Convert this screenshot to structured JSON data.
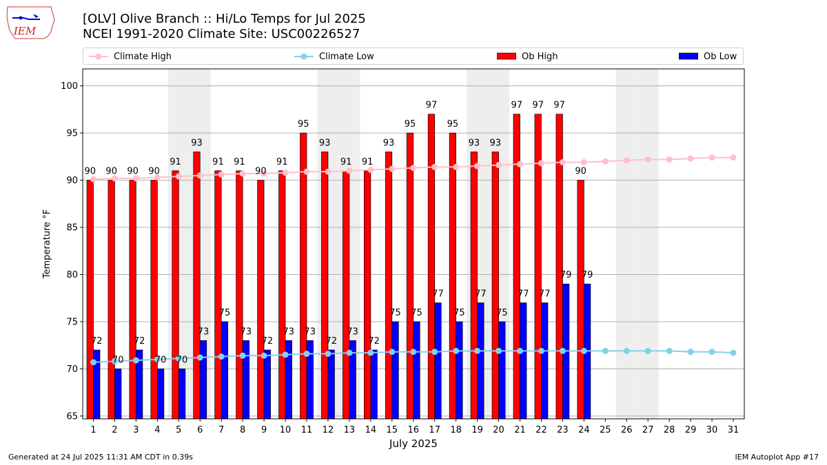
{
  "header": {
    "line1": "[OLV] Olive Branch :: Hi/Lo Temps for Jul 2025",
    "line2": "NCEI 1991-2020 Climate Site: USC00226527",
    "logo_text": "IEM"
  },
  "legend": {
    "items": [
      {
        "label": "Climate High",
        "color": "#ffc0cb",
        "kind": "line"
      },
      {
        "label": "Climate Low",
        "color": "#87ceeb",
        "kind": "line"
      },
      {
        "label": "Ob High",
        "color": "#ff0000",
        "kind": "bar"
      },
      {
        "label": "Ob Low",
        "color": "#0000ff",
        "kind": "bar"
      }
    ]
  },
  "footer": {
    "left": "Generated at 24 Jul 2025 11:31 AM CDT in 0.39s",
    "right": "IEM Autoplot App #17"
  },
  "chart_data": {
    "type": "bar",
    "xlabel": "July 2025",
    "ylabel": "Temperature °F",
    "ylim": [
      64.7,
      101.8
    ],
    "yticks": [
      65,
      70,
      75,
      80,
      85,
      90,
      95,
      100
    ],
    "days": [
      1,
      2,
      3,
      4,
      5,
      6,
      7,
      8,
      9,
      10,
      11,
      12,
      13,
      14,
      15,
      16,
      17,
      18,
      19,
      20,
      21,
      22,
      23,
      24,
      25,
      26,
      27,
      28,
      29,
      30,
      31
    ],
    "weekend_days": [
      5,
      6,
      12,
      13,
      19,
      20,
      26,
      27
    ],
    "grid": "horizontal",
    "series": [
      {
        "name": "Ob High",
        "color": "#ff0000",
        "values": [
          90,
          90,
          90,
          90,
          91,
          93,
          91,
          91,
          90,
          91,
          95,
          93,
          91,
          91,
          93,
          95,
          97,
          95,
          93,
          93,
          97,
          97,
          97,
          90
        ]
      },
      {
        "name": "Ob Low",
        "color": "#0000ff",
        "values": [
          72,
          70,
          72,
          70,
          70,
          73,
          75,
          73,
          72,
          73,
          73,
          72,
          73,
          72,
          75,
          75,
          77,
          75,
          77,
          75,
          77,
          77,
          79,
          79
        ]
      },
      {
        "name": "Climate High",
        "color": "#ffc0cb",
        "values": [
          90.1,
          90.2,
          90.2,
          90.3,
          90.4,
          90.5,
          90.6,
          90.7,
          90.7,
          90.8,
          90.9,
          90.9,
          91.0,
          91.1,
          91.2,
          91.3,
          91.4,
          91.4,
          91.5,
          91.6,
          91.7,
          91.8,
          91.9,
          91.9,
          92.0,
          92.1,
          92.2,
          92.2,
          92.3,
          92.4,
          92.4
        ]
      },
      {
        "name": "Climate Low",
        "color": "#87ceeb",
        "values": [
          70.7,
          70.8,
          70.9,
          71.0,
          71.1,
          71.2,
          71.3,
          71.4,
          71.4,
          71.5,
          71.6,
          71.6,
          71.7,
          71.7,
          71.8,
          71.8,
          71.8,
          71.9,
          71.9,
          71.9,
          71.9,
          71.9,
          71.9,
          71.9,
          71.9,
          71.9,
          71.9,
          71.9,
          71.8,
          71.8,
          71.7
        ]
      }
    ]
  }
}
